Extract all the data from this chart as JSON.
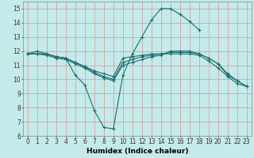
{
  "xlabel": "Humidex (Indice chaleur)",
  "xlim": [
    -0.5,
    23.5
  ],
  "ylim": [
    6,
    15.5
  ],
  "yticks": [
    6,
    7,
    8,
    9,
    10,
    11,
    12,
    13,
    14,
    15
  ],
  "xticks": [
    0,
    1,
    2,
    3,
    4,
    5,
    6,
    7,
    8,
    9,
    10,
    11,
    12,
    13,
    14,
    15,
    16,
    17,
    18,
    19,
    20,
    21,
    22,
    23
  ],
  "bg_color": "#c5eaea",
  "grid_color": "#d8a0a0",
  "line_color": "#1a6e6e",
  "lines": [
    {
      "x": [
        0,
        1,
        2,
        3,
        4,
        5,
        6,
        7,
        8,
        9,
        10,
        11,
        12,
        13,
        14,
        15,
        16,
        17,
        18,
        19,
        20,
        21,
        22,
        23
      ],
      "y": [
        11.8,
        12.0,
        11.8,
        11.6,
        11.5,
        10.3,
        9.6,
        7.8,
        6.6,
        6.5,
        10.3,
        11.8,
        13.0,
        14.2,
        15.0,
        15.0,
        14.6,
        14.1,
        13.5,
        null,
        null,
        null,
        null,
        null
      ],
      "markers": [
        0,
        1,
        2,
        3,
        4,
        5,
        6,
        7,
        8,
        9,
        10,
        11,
        12,
        13,
        14,
        15,
        16,
        17,
        18
      ]
    },
    {
      "x": [
        0,
        1,
        2,
        3,
        4,
        5,
        6,
        7,
        8,
        9,
        10,
        11,
        12,
        13,
        14,
        15,
        16,
        17,
        18,
        19,
        20,
        21,
        22,
        23
      ],
      "y": [
        11.8,
        11.8,
        11.8,
        11.6,
        11.5,
        11.2,
        10.9,
        10.6,
        10.4,
        10.2,
        11.5,
        11.6,
        11.7,
        11.8,
        11.8,
        11.9,
        11.9,
        11.9,
        11.8,
        11.5,
        11.1,
        10.4,
        9.9,
        9.5
      ],
      "markers": [
        0,
        9,
        14,
        19,
        23
      ]
    },
    {
      "x": [
        0,
        1,
        2,
        3,
        4,
        5,
        6,
        7,
        8,
        9,
        10,
        11,
        12,
        13,
        14,
        15,
        16,
        17,
        18,
        19,
        20,
        21,
        22,
        23
      ],
      "y": [
        11.8,
        11.8,
        11.8,
        11.6,
        11.5,
        11.2,
        10.9,
        10.5,
        10.2,
        10.0,
        11.2,
        11.4,
        11.6,
        11.7,
        11.8,
        11.8,
        11.8,
        11.8,
        11.7,
        11.3,
        10.8,
        10.2,
        9.7,
        9.5
      ],
      "markers": [
        0,
        9,
        14,
        19,
        23
      ]
    },
    {
      "x": [
        0,
        1,
        2,
        3,
        4,
        5,
        6,
        7,
        8,
        9,
        10,
        11,
        12,
        13,
        14,
        15,
        16,
        17,
        18,
        19,
        20,
        21,
        22,
        23
      ],
      "y": [
        11.8,
        11.8,
        11.7,
        11.5,
        11.4,
        11.1,
        10.8,
        10.4,
        10.1,
        9.9,
        11.0,
        11.2,
        11.4,
        11.6,
        11.7,
        12.0,
        12.0,
        12.0,
        11.8,
        11.5,
        11.1,
        10.3,
        9.9,
        9.5
      ],
      "markers": [
        0,
        9,
        15,
        20,
        23
      ]
    }
  ]
}
